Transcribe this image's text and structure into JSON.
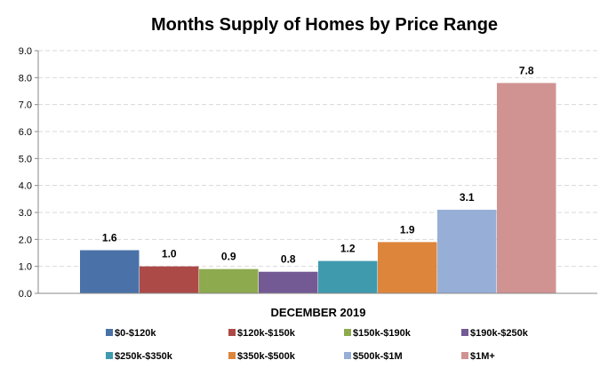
{
  "chart_data": {
    "type": "bar",
    "title": "Months Supply of Homes by Price Range",
    "xlabel": "DECEMBER 2019",
    "ylabel": "",
    "ylim": [
      0,
      9
    ],
    "yticks": [
      "0.0",
      "1.0",
      "2.0",
      "3.0",
      "4.0",
      "5.0",
      "6.0",
      "7.0",
      "8.0",
      "9.0"
    ],
    "grid": true,
    "legend_position": "bottom",
    "series": [
      {
        "name": "$0-$120k",
        "value": 1.6,
        "label": "1.6",
        "color": "#4A72A8"
      },
      {
        "name": "$120k-$150k",
        "value": 1.0,
        "label": "1.0",
        "color": "#AC4A47"
      },
      {
        "name": "$150k-$190k",
        "value": 0.9,
        "label": "0.9",
        "color": "#8DAA4E"
      },
      {
        "name": "$190k-$250k",
        "value": 0.8,
        "label": "0.8",
        "color": "#735A94"
      },
      {
        "name": "$250k-$350k",
        "value": 1.2,
        "label": "1.2",
        "color": "#3F9AAE"
      },
      {
        "name": "$350k-$500k",
        "value": 1.9,
        "label": "1.9",
        "color": "#DE853C"
      },
      {
        "name": "$500k-$1M",
        "value": 3.1,
        "label": "3.1",
        "color": "#97AFD7"
      },
      {
        "name": "$1M+",
        "value": 7.8,
        "label": "7.8",
        "color": "#D19392"
      }
    ]
  }
}
